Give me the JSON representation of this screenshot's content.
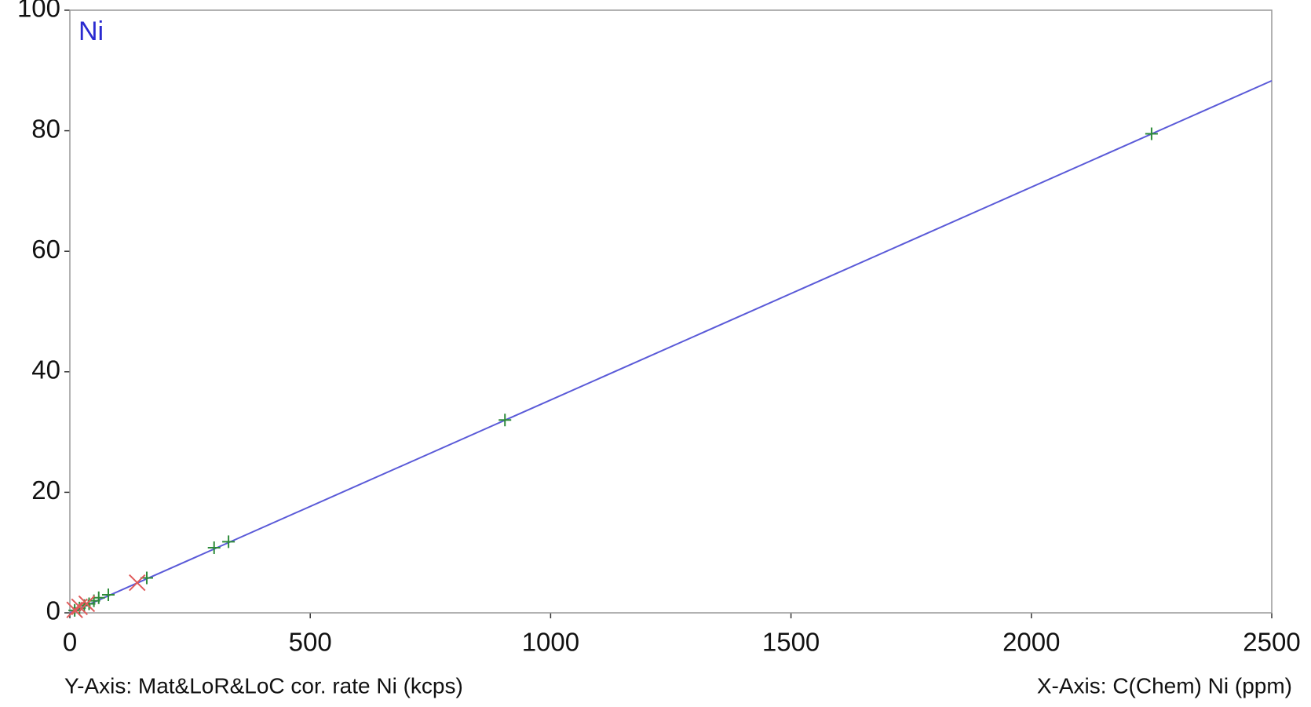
{
  "chart_data": {
    "type": "scatter",
    "annotation": "Ni",
    "xlabel": "X-Axis: C(Chem) Ni (ppm)",
    "ylabel": "Y-Axis: Mat&LoR&LoC cor. rate Ni (kcps)",
    "xlim": [
      0,
      2500
    ],
    "ylim": [
      0,
      100
    ],
    "xticks": [
      0,
      500,
      1000,
      1500,
      2000,
      2500
    ],
    "yticks": [
      0,
      20,
      40,
      60,
      80,
      100
    ],
    "grid": true,
    "series": [
      {
        "type": "line",
        "color": "#5a5ad8",
        "x": [
          0,
          2500
        ],
        "values": [
          0,
          88.3
        ]
      },
      {
        "marker": "plus",
        "color": "#2e8b3a",
        "x": [
          2250,
          905,
          300,
          330,
          160,
          80,
          60,
          50,
          40,
          30,
          20,
          10
        ],
        "values": [
          79.5,
          32,
          10.8,
          11.8,
          5.8,
          3,
          2.5,
          2,
          1.5,
          1.2,
          0.8,
          0.4
        ]
      },
      {
        "marker": "x",
        "color": "#e05a5a",
        "x": [
          140,
          35,
          20,
          10
        ],
        "values": [
          5,
          1.5,
          1,
          0.5
        ]
      }
    ]
  }
}
